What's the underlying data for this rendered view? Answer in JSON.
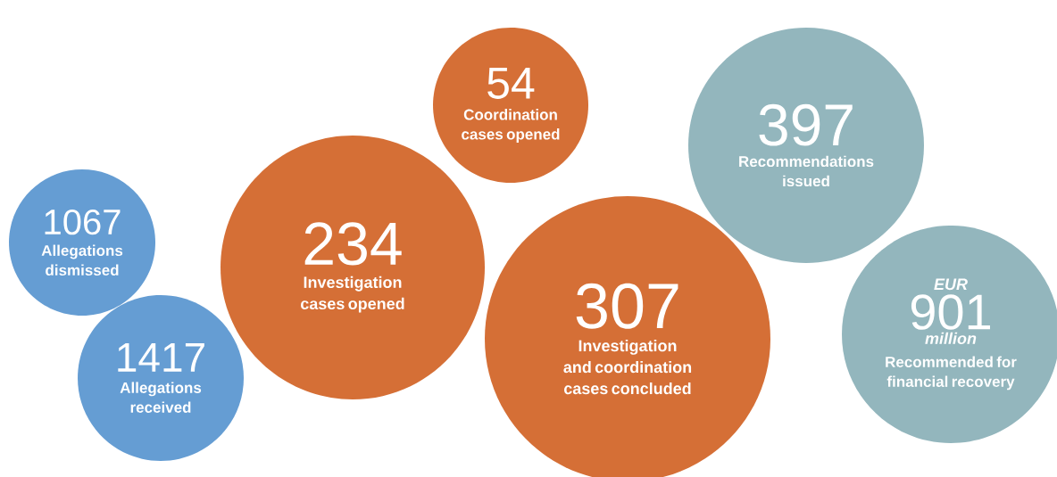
{
  "chart_data": {
    "type": "other",
    "categories": [
      "Allegations dismissed",
      "Allegations received",
      "Investigation cases opened",
      "Coordination cases opened",
      "Investigation and coordination cases concluded",
      "Recommendations issued",
      "Recommended for financial recovery"
    ],
    "values": [
      1067,
      1417,
      234,
      54,
      307,
      397,
      901
    ],
    "data_labels": true,
    "colors": [
      "#659dd3",
      "#659dd3",
      "#d56f36",
      "#d56f36",
      "#d56f36",
      "#93b6bd",
      "#93b6bd"
    ],
    "annotations": [
      "EUR",
      "million"
    ]
  }
}
